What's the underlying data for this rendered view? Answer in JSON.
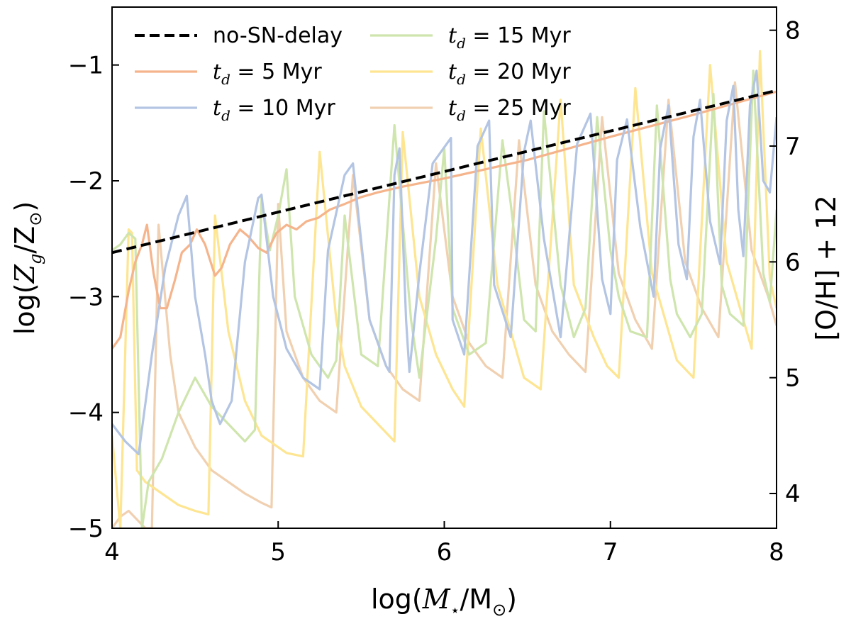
{
  "chart_data": {
    "type": "line",
    "title": "",
    "xlabel_parts": [
      "log(",
      "M",
      "⋆",
      "/M",
      "⊙",
      ")"
    ],
    "ylabel_left_parts": [
      "log(",
      "Z",
      "g",
      "/Z",
      "⊙",
      ")"
    ],
    "ylabel_right": "[O/H] + 12",
    "xlim": [
      4,
      8
    ],
    "ylim_left": [
      -5,
      -0.5
    ],
    "ylim_right": [
      3.7,
      8.2
    ],
    "x_ticks": [
      "4",
      "5",
      "6",
      "7",
      "8"
    ],
    "y_left_ticks": [
      "−5",
      "−4",
      "−3",
      "−2",
      "−1"
    ],
    "y_right_ticks": [
      "4",
      "5",
      "6",
      "7",
      "8"
    ],
    "grid": false,
    "legend_position": "upper-left",
    "legend": [
      {
        "pre": "",
        "sub": "",
        "post": "no-SN-delay"
      },
      {
        "pre": "t",
        "sub": "d",
        "post": " = 5 Myr"
      },
      {
        "pre": "t",
        "sub": "d",
        "post": " = 10 Myr"
      },
      {
        "pre": "t",
        "sub": "d",
        "post": " = 15 Myr"
      },
      {
        "pre": "t",
        "sub": "d",
        "post": " = 20 Myr"
      },
      {
        "pre": "t",
        "sub": "d",
        "post": " = 25 Myr"
      }
    ],
    "series": [
      {
        "name": "no-SN-delay",
        "color": "#000000",
        "dashed": true,
        "x": [
          4.0,
          8.0
        ],
        "y": [
          -2.62,
          -1.22
        ]
      },
      {
        "name": "t_d = 5 Myr",
        "color": "#f5b48c",
        "x": [
          4.0,
          4.05,
          4.1,
          4.14,
          4.18,
          4.21,
          4.25,
          4.29,
          4.33,
          4.38,
          4.42,
          4.47,
          4.51,
          4.56,
          4.62,
          4.66,
          4.71,
          4.77,
          4.82,
          4.88,
          4.93,
          4.99,
          5.05,
          5.11,
          5.17,
          5.24,
          5.31,
          5.4,
          5.5,
          5.6,
          5.75,
          6.0,
          6.5,
          7.0,
          7.5,
          8.0
        ],
        "y": [
          -3.45,
          -3.35,
          -2.95,
          -2.7,
          -2.55,
          -2.38,
          -2.8,
          -3.1,
          -3.1,
          -2.85,
          -2.62,
          -2.55,
          -2.42,
          -2.55,
          -2.82,
          -2.75,
          -2.55,
          -2.42,
          -2.48,
          -2.58,
          -2.62,
          -2.45,
          -2.38,
          -2.42,
          -2.35,
          -2.32,
          -2.25,
          -2.2,
          -2.14,
          -2.1,
          -2.05,
          -1.98,
          -1.82,
          -1.62,
          -1.43,
          -1.23
        ]
      },
      {
        "name": "t_d = 10 Myr",
        "color": "#b3c5e3",
        "x": [
          4.0,
          4.08,
          4.16,
          4.24,
          4.32,
          4.4,
          4.45,
          4.5,
          4.56,
          4.6,
          4.65,
          4.72,
          4.8,
          4.88,
          4.9,
          4.97,
          5.05,
          5.15,
          5.25,
          5.3,
          5.4,
          5.45,
          5.55,
          5.65,
          5.67,
          5.7,
          5.73,
          5.77,
          5.79,
          5.85,
          5.93,
          6.04,
          6.05,
          6.12,
          6.2,
          6.27,
          6.3,
          6.4,
          6.48,
          6.52,
          6.6,
          6.7,
          6.8,
          6.88,
          6.95,
          7.0,
          7.04,
          7.1,
          7.18,
          7.26,
          7.3,
          7.35,
          7.41,
          7.46,
          7.5,
          7.54,
          7.6,
          7.66,
          7.7,
          7.74,
          7.77,
          7.8,
          7.84,
          7.88,
          7.92,
          7.96,
          8.0
        ],
        "y": [
          -4.1,
          -4.25,
          -4.36,
          -3.5,
          -2.75,
          -2.3,
          -2.13,
          -3.0,
          -3.5,
          -3.9,
          -4.1,
          -3.9,
          -2.7,
          -2.15,
          -2.12,
          -3.0,
          -3.45,
          -3.7,
          -3.8,
          -2.6,
          -1.95,
          -1.85,
          -3.2,
          -3.6,
          -3.65,
          -1.95,
          -1.72,
          -3.2,
          -3.65,
          -2.8,
          -1.85,
          -1.63,
          -3.2,
          -3.5,
          -1.7,
          -1.48,
          -2.9,
          -3.35,
          -1.75,
          -1.48,
          -2.5,
          -3.35,
          -1.68,
          -1.42,
          -2.85,
          -3.15,
          -1.82,
          -1.47,
          -2.4,
          -3.0,
          -1.72,
          -1.35,
          -2.55,
          -2.85,
          -1.62,
          -1.3,
          -2.35,
          -2.72,
          -1.48,
          -1.18,
          -2.25,
          -2.65,
          -1.35,
          -1.05,
          -2.0,
          -2.1,
          -1.45
        ]
      },
      {
        "name": "t_d = 15 Myr",
        "color": "#cfe5ae",
        "x": [
          4.0,
          4.05,
          4.1,
          4.14,
          4.18,
          4.22,
          4.3,
          4.4,
          4.5,
          4.6,
          4.7,
          4.8,
          4.86,
          4.9,
          4.95,
          5.0,
          5.05,
          5.1,
          5.2,
          5.3,
          5.35,
          5.4,
          5.5,
          5.6,
          5.7,
          5.8,
          5.85,
          5.95,
          6.0,
          6.05,
          6.15,
          6.25,
          6.35,
          6.4,
          6.48,
          6.55,
          6.6,
          6.7,
          6.78,
          6.85,
          6.92,
          7.0,
          7.05,
          7.12,
          7.22,
          7.28,
          7.36,
          7.4,
          7.48,
          7.55,
          7.62,
          7.67,
          7.72,
          7.8,
          7.86,
          7.92,
          7.96,
          8.0
        ],
        "y": [
          -2.6,
          -2.55,
          -2.45,
          -2.5,
          -5.0,
          -4.6,
          -4.4,
          -4.0,
          -3.7,
          -3.95,
          -4.1,
          -4.25,
          -4.15,
          -2.15,
          -2.6,
          -2.3,
          -1.9,
          -3.0,
          -3.5,
          -3.7,
          -3.55,
          -2.3,
          -3.5,
          -3.6,
          -1.52,
          -3.2,
          -3.7,
          -2.5,
          -1.72,
          -3.1,
          -3.5,
          -3.4,
          -1.65,
          -2.2,
          -3.2,
          -3.3,
          -1.4,
          -2.9,
          -3.35,
          -3.1,
          -1.45,
          -2.6,
          -3.0,
          -3.3,
          -3.35,
          -1.35,
          -2.85,
          -3.15,
          -3.35,
          -3.15,
          -1.25,
          -2.9,
          -3.15,
          -3.25,
          -1.05,
          -2.8,
          -3.05,
          -2.25
        ]
      },
      {
        "name": "t_d = 20 Myr",
        "color": "#fde592",
        "x": [
          4.0,
          4.05,
          4.1,
          4.12,
          4.15,
          4.2,
          4.3,
          4.4,
          4.5,
          4.58,
          4.62,
          4.7,
          4.8,
          4.9,
          5.0,
          5.05,
          5.15,
          5.25,
          5.35,
          5.4,
          5.5,
          5.6,
          5.7,
          5.75,
          5.85,
          5.95,
          6.05,
          6.12,
          6.22,
          6.32,
          6.42,
          6.48,
          6.58,
          6.7,
          6.78,
          6.9,
          6.98,
          7.05,
          7.15,
          7.25,
          7.35,
          7.4,
          7.5,
          7.6,
          7.7,
          7.8,
          7.85,
          7.9,
          7.96,
          8.0
        ],
        "y": [
          -4.2,
          -5.0,
          -2.42,
          -2.45,
          -4.5,
          -4.6,
          -4.7,
          -4.8,
          -4.85,
          -4.88,
          -2.3,
          -3.3,
          -3.9,
          -4.2,
          -4.3,
          -4.35,
          -4.38,
          -1.75,
          -3.2,
          -3.6,
          -3.95,
          -4.1,
          -4.25,
          -1.58,
          -3.0,
          -3.5,
          -3.8,
          -3.95,
          -1.55,
          -2.9,
          -3.4,
          -3.7,
          -3.8,
          -1.3,
          -2.9,
          -3.35,
          -3.6,
          -3.7,
          -1.2,
          -2.8,
          -3.3,
          -3.55,
          -3.7,
          -1.0,
          -2.7,
          -3.2,
          -3.45,
          -0.88,
          -2.85,
          -3.1
        ]
      },
      {
        "name": "t_d = 25 Myr",
        "color": "#f0d0b0",
        "x": [
          4.0,
          4.05,
          4.1,
          4.2,
          4.24,
          4.28,
          4.35,
          4.4,
          4.5,
          4.6,
          4.7,
          4.8,
          4.9,
          4.96,
          5.0,
          5.05,
          5.15,
          5.25,
          5.35,
          5.45,
          5.55,
          5.65,
          5.75,
          5.85,
          5.95,
          6.05,
          6.15,
          6.25,
          6.35,
          6.45,
          6.55,
          6.65,
          6.75,
          6.85,
          6.95,
          7.05,
          7.15,
          7.25,
          7.35,
          7.45,
          7.55,
          7.65,
          7.75,
          7.85,
          7.95,
          8.0
        ],
        "y": [
          -5.0,
          -4.9,
          -4.85,
          -5.0,
          -5.0,
          -2.38,
          -3.5,
          -4.0,
          -4.3,
          -4.5,
          -4.6,
          -4.7,
          -4.78,
          -4.82,
          -2.2,
          -3.3,
          -3.7,
          -3.9,
          -4.0,
          -1.95,
          -3.2,
          -3.6,
          -3.8,
          -3.9,
          -1.85,
          -3.0,
          -3.4,
          -3.6,
          -3.7,
          -1.65,
          -2.9,
          -3.3,
          -3.5,
          -3.65,
          -1.45,
          -2.8,
          -3.2,
          -3.45,
          -1.3,
          -2.7,
          -3.1,
          -3.35,
          -1.15,
          -2.6,
          -3.0,
          -3.25
        ]
      }
    ]
  }
}
